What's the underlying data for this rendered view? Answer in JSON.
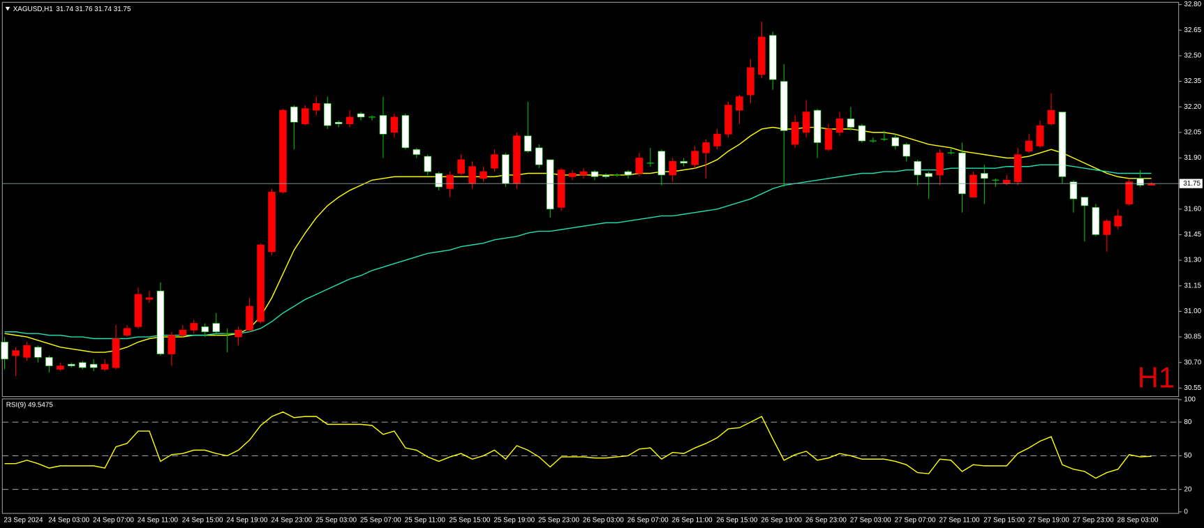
{
  "chart_data": [
    {
      "type": "candlestick",
      "title": "XAGUSD,H1",
      "subtitle": "31.74 31.76 31.74 31.75",
      "annotation": "H1",
      "categories": [
        "23 Sep 2024",
        null,
        null,
        null,
        "24 Sep 03:00",
        null,
        null,
        null,
        "24 Sep 07:00",
        null,
        null,
        null,
        "24 Sep 11:00",
        null,
        null,
        null,
        "24 Sep 15:00",
        null,
        null,
        null,
        "24 Sep 19:00",
        null,
        null,
        null,
        "24 Sep 23:00",
        null,
        null,
        null,
        "25 Sep 03:00",
        null,
        null,
        null,
        "25 Sep 07:00",
        null,
        null,
        null,
        "25 Sep 11:00",
        null,
        null,
        null,
        "25 Sep 15:00",
        null,
        null,
        null,
        "25 Sep 19:00",
        null,
        null,
        null,
        "25 Sep 23:00",
        null,
        null,
        null,
        "26 Sep 03:00",
        null,
        null,
        null,
        "26 Sep 07:00",
        null,
        null,
        null,
        "26 Sep 11:00",
        null,
        null,
        null,
        "26 Sep 15:00",
        null,
        null,
        null,
        "26 Sep 19:00",
        null,
        null,
        null,
        "26 Sep 23:00",
        null,
        null,
        null,
        "27 Sep 03:00",
        null,
        null,
        null,
        "27 Sep 07:00",
        null,
        null,
        null,
        "27 Sep 11:00",
        null,
        null,
        null,
        "27 Sep 15:00",
        null,
        null,
        null,
        "27 Sep 19:00",
        null,
        null,
        null,
        "27 Sep 23:00",
        null,
        null,
        null,
        "28 Sep 03:00",
        null,
        null,
        null
      ],
      "open": [
        30.82,
        30.74,
        30.73,
        30.79,
        30.73,
        30.66,
        30.69,
        30.7,
        30.69,
        30.66,
        30.67,
        30.86,
        30.91,
        31.07,
        31.12,
        30.75,
        30.86,
        30.89,
        30.91,
        30.93,
        30.87,
        30.85,
        30.89,
        30.94,
        31.35,
        31.7,
        32.2,
        32.1,
        32.18,
        32.22,
        32.11,
        32.1,
        32.16,
        32.14,
        32.15,
        32.05,
        32.15,
        31.95,
        31.91,
        31.81,
        31.72,
        31.81,
        31.75,
        31.78,
        31.84,
        31.92,
        31.75,
        32.03,
        31.96,
        31.89,
        31.61,
        31.79,
        31.8,
        31.82,
        31.8,
        31.8,
        31.82,
        31.81,
        31.87,
        31.94,
        31.8,
        31.88,
        31.86,
        31.93,
        31.97,
        32.04,
        32.18,
        32.27,
        32.39,
        32.62,
        32.35,
        31.98,
        32.05,
        32.18,
        31.95,
        32.05,
        32.13,
        32.09,
        32.0,
        32.01,
        32.02,
        31.98,
        31.88,
        31.81,
        31.8,
        31.93,
        31.93,
        31.67,
        31.81,
        31.77,
        31.75,
        31.76,
        31.94,
        31.97,
        32.1,
        32.17,
        31.76,
        31.67,
        31.61,
        31.45,
        31.5,
        31.63,
        31.78,
        31.74
      ],
      "high": [
        30.85,
        30.79,
        30.82,
        30.8,
        30.74,
        30.7,
        30.7,
        30.71,
        30.72,
        30.72,
        30.92,
        30.92,
        31.14,
        31.12,
        31.17,
        30.88,
        30.92,
        30.95,
        30.93,
        30.99,
        30.9,
        30.91,
        31.08,
        31.4,
        31.72,
        32.19,
        32.21,
        32.21,
        32.26,
        32.26,
        32.12,
        32.18,
        32.17,
        32.15,
        32.26,
        32.16,
        32.16,
        31.96,
        31.92,
        31.82,
        31.82,
        31.92,
        31.88,
        31.85,
        31.95,
        31.93,
        32.05,
        32.23,
        31.98,
        31.89,
        31.84,
        31.83,
        31.84,
        31.83,
        31.81,
        31.81,
        31.83,
        31.93,
        31.96,
        31.95,
        31.9,
        31.9,
        31.97,
        32.01,
        32.07,
        32.23,
        32.27,
        32.48,
        32.7,
        32.64,
        32.45,
        32.15,
        32.24,
        32.19,
        32.1,
        32.17,
        32.2,
        32.1,
        32.02,
        32.06,
        32.04,
        31.99,
        31.89,
        31.82,
        31.95,
        31.96,
        31.99,
        31.82,
        31.86,
        31.78,
        31.8,
        31.96,
        32.04,
        32.12,
        32.28,
        32.17,
        31.77,
        31.67,
        31.63,
        31.54,
        31.6,
        31.78,
        31.83,
        31.76
      ],
      "low": [
        30.66,
        30.62,
        30.71,
        30.7,
        30.64,
        30.65,
        30.67,
        30.66,
        30.65,
        30.65,
        30.66,
        30.85,
        30.9,
        31.05,
        30.74,
        30.68,
        30.85,
        30.87,
        30.85,
        30.86,
        30.76,
        30.8,
        30.88,
        30.93,
        31.33,
        31.69,
        31.95,
        32.09,
        32.15,
        32.07,
        32.08,
        32.08,
        32.12,
        32.12,
        31.9,
        32.02,
        31.95,
        31.9,
        31.8,
        31.71,
        31.67,
        31.8,
        31.72,
        31.76,
        31.82,
        31.73,
        31.72,
        31.93,
        31.84,
        31.55,
        31.59,
        31.77,
        31.78,
        31.77,
        31.78,
        31.79,
        31.78,
        31.79,
        31.85,
        31.74,
        31.76,
        31.85,
        31.84,
        31.78,
        31.95,
        32.02,
        32.1,
        32.22,
        32.37,
        32.3,
        31.73,
        31.96,
        32.02,
        31.9,
        31.94,
        32.03,
        32.06,
        31.99,
        31.99,
        32.0,
        31.95,
        31.88,
        31.74,
        31.66,
        31.74,
        31.92,
        31.58,
        31.67,
        31.63,
        31.73,
        31.74,
        31.74,
        31.93,
        31.96,
        32.09,
        31.75,
        31.58,
        31.41,
        31.44,
        31.35,
        31.48,
        31.62,
        31.73,
        31.74
      ],
      "close": [
        30.72,
        30.77,
        30.8,
        30.73,
        30.68,
        30.68,
        30.68,
        30.67,
        30.67,
        30.69,
        30.84,
        30.9,
        31.1,
        31.08,
        30.75,
        30.86,
        30.89,
        30.93,
        30.88,
        30.88,
        30.87,
        30.89,
        31.03,
        31.39,
        31.7,
        32.18,
        32.11,
        32.19,
        32.22,
        32.09,
        32.1,
        32.14,
        32.14,
        32.14,
        32.04,
        32.14,
        31.96,
        31.92,
        31.82,
        31.73,
        31.8,
        31.89,
        31.85,
        31.82,
        31.92,
        31.75,
        32.03,
        31.94,
        31.86,
        31.6,
        31.83,
        31.81,
        31.82,
        31.79,
        31.79,
        31.8,
        31.8,
        31.9,
        31.87,
        31.8,
        31.88,
        31.87,
        31.94,
        31.99,
        32.04,
        32.21,
        32.26,
        32.43,
        32.61,
        32.36,
        32.06,
        32.11,
        32.17,
        31.99,
        32.07,
        32.13,
        32.08,
        32.0,
        32.0,
        32.01,
        31.97,
        31.91,
        31.8,
        31.79,
        31.93,
        31.93,
        31.69,
        31.8,
        31.78,
        31.77,
        31.77,
        31.92,
        32.0,
        32.09,
        32.18,
        31.79,
        31.66,
        31.62,
        31.45,
        31.53,
        31.56,
        31.76,
        31.74,
        31.75
      ],
      "up_color": "#ff0000",
      "down_color": "#ffffff",
      "down_wick_color": "#00c000",
      "doji_color": "#00c000",
      "series": [
        {
          "color": "#ffff00",
          "values": [
            30.87,
            30.86,
            30.85,
            30.83,
            30.81,
            30.79,
            30.78,
            30.77,
            30.76,
            30.76,
            30.77,
            30.79,
            30.82,
            30.84,
            30.85,
            30.85,
            30.85,
            30.86,
            30.86,
            30.86,
            30.86,
            30.87,
            30.9,
            30.97,
            31.08,
            31.22,
            31.36,
            31.46,
            31.55,
            31.62,
            31.67,
            31.71,
            31.74,
            31.77,
            31.78,
            31.79,
            31.79,
            31.79,
            31.79,
            31.79,
            31.79,
            31.79,
            31.79,
            31.79,
            31.79,
            31.8,
            31.8,
            31.81,
            31.81,
            31.81,
            31.8,
            31.8,
            31.8,
            31.8,
            31.8,
            31.8,
            31.8,
            31.81,
            31.81,
            31.82,
            31.82,
            31.83,
            31.84,
            31.86,
            31.89,
            31.94,
            31.98,
            32.03,
            32.07,
            32.08,
            32.07,
            32.07,
            32.08,
            32.08,
            32.07,
            32.07,
            32.07,
            32.06,
            32.05,
            32.05,
            32.04,
            32.02,
            32.0,
            31.98,
            31.97,
            31.96,
            31.94,
            31.93,
            31.92,
            31.91,
            31.9,
            31.9,
            31.91,
            31.93,
            31.95,
            31.93,
            31.9,
            31.87,
            31.84,
            31.81,
            31.79,
            31.78,
            31.78,
            31.78
          ]
        },
        {
          "color": "#20e0b0",
          "values": [
            30.88,
            30.88,
            30.87,
            30.87,
            30.86,
            30.86,
            30.85,
            30.85,
            30.84,
            30.84,
            30.84,
            30.84,
            30.85,
            30.85,
            30.86,
            30.86,
            30.86,
            30.86,
            30.86,
            30.87,
            30.87,
            30.87,
            30.88,
            30.9,
            30.94,
            30.99,
            31.03,
            31.07,
            31.1,
            31.13,
            31.16,
            31.19,
            31.21,
            31.24,
            31.26,
            31.28,
            31.3,
            31.32,
            31.34,
            31.35,
            31.36,
            31.38,
            31.39,
            31.4,
            31.42,
            31.43,
            31.44,
            31.46,
            31.47,
            31.47,
            31.48,
            31.49,
            31.5,
            31.51,
            31.52,
            31.52,
            31.53,
            31.54,
            31.55,
            31.56,
            31.56,
            31.57,
            31.58,
            31.59,
            31.6,
            31.62,
            31.64,
            31.66,
            31.69,
            31.72,
            31.74,
            31.75,
            31.76,
            31.77,
            31.78,
            31.79,
            31.8,
            31.81,
            31.81,
            31.82,
            31.82,
            31.83,
            31.83,
            31.83,
            31.83,
            31.84,
            31.84,
            31.84,
            31.84,
            31.84,
            31.85,
            31.85,
            31.85,
            31.86,
            31.86,
            31.86,
            31.85,
            31.84,
            31.83,
            31.82,
            31.81,
            31.81,
            31.81,
            31.81
          ]
        }
      ],
      "last_price": 31.75,
      "ylim": [
        30.5,
        32.8
      ],
      "yticks": [
        30.55,
        {
          "value": 30.7,
          "label": "30.70"
        },
        30.85,
        {
          "value": 31.0,
          "label": "31.00"
        },
        31.15,
        {
          "value": 31.3,
          "label": "31.30"
        },
        31.45,
        {
          "value": 31.6,
          "label": "31.60"
        },
        31.75,
        {
          "value": 31.9,
          "label": "31.90"
        },
        32.05,
        {
          "value": 32.2,
          "label": "32.20"
        },
        32.35,
        {
          "value": 32.5,
          "label": "32.50"
        },
        32.65,
        {
          "value": 32.8,
          "label": "32.80"
        }
      ]
    },
    {
      "type": "line",
      "title": "RSI(9) 49.5475",
      "color": "#ffff00",
      "values": [
        43,
        43,
        46,
        43,
        39,
        41,
        41,
        41,
        41,
        39,
        58,
        61,
        72,
        72,
        45,
        51,
        52,
        55,
        55,
        52,
        50,
        55,
        64,
        77,
        85,
        89,
        84,
        85,
        85,
        78,
        78,
        78,
        78,
        77,
        69,
        72,
        57,
        55,
        49,
        45,
        49,
        52,
        47,
        50,
        55,
        47,
        59,
        55,
        49,
        40,
        49,
        49,
        49,
        48,
        48,
        49,
        50,
        56,
        57,
        47,
        53,
        52,
        57,
        61,
        66,
        74,
        75,
        80,
        85,
        65,
        46,
        51,
        54,
        46,
        48,
        52,
        50,
        47,
        47,
        47,
        45,
        42,
        35,
        34,
        47,
        46,
        36,
        42,
        41,
        41,
        41,
        52,
        57,
        63,
        67,
        42,
        38,
        36,
        30,
        35,
        38,
        51,
        49,
        49.5475
      ],
      "ylim": [
        0,
        100
      ],
      "yticks": [
        100,
        80,
        50,
        20,
        0
      ]
    }
  ]
}
